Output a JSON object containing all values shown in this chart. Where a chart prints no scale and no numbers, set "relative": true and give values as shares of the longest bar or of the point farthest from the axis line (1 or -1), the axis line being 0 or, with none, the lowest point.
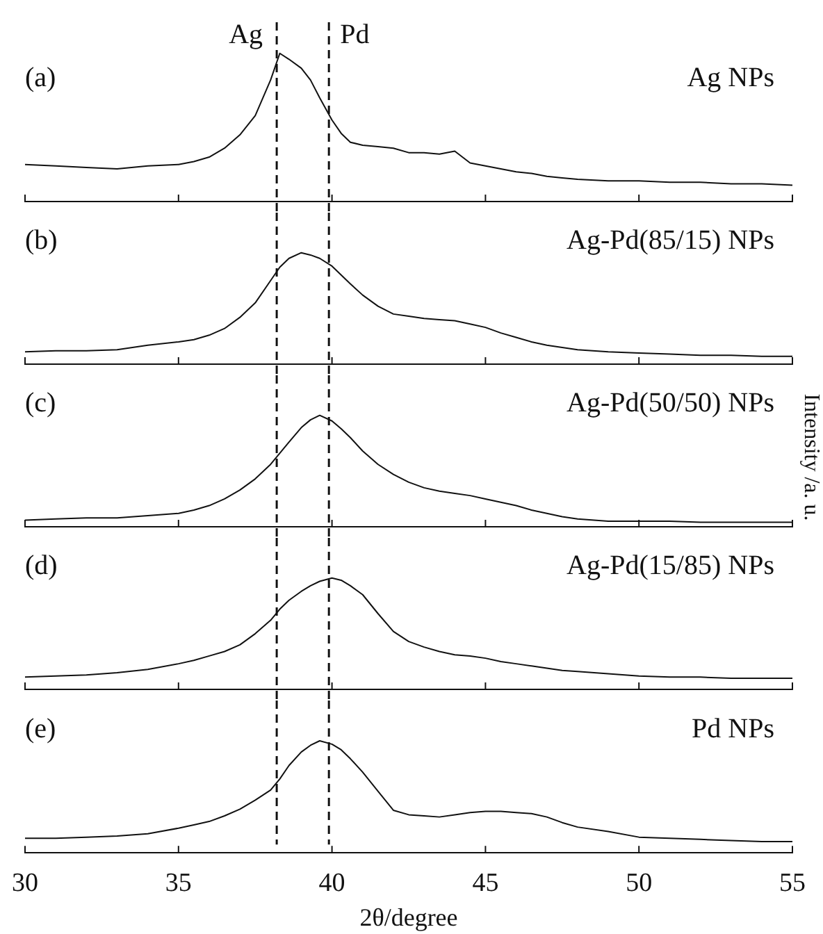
{
  "chart_data": [
    {
      "type": "line",
      "relative": true,
      "tick_labels": false,
      "xlim": [
        30,
        55
      ],
      "xticks": [
        30,
        35,
        40,
        45,
        50,
        55
      ],
      "x": [
        30,
        31,
        32,
        33,
        34,
        35,
        35.5,
        36,
        36.5,
        37,
        37.5,
        38,
        38.3,
        38.6,
        39,
        39.3,
        39.6,
        40,
        40.3,
        40.6,
        41,
        41.5,
        42,
        42.5,
        43,
        43.5,
        44,
        44.5,
        45,
        45.5,
        46,
        46.5,
        47,
        47.5,
        48,
        49,
        50,
        51,
        52,
        53,
        54,
        55
      ],
      "series": [
        {
          "color": "#111111",
          "values": [
            0.25,
            0.24,
            0.23,
            0.22,
            0.24,
            0.25,
            0.27,
            0.3,
            0.36,
            0.45,
            0.58,
            0.82,
            1.0,
            0.96,
            0.9,
            0.82,
            0.7,
            0.55,
            0.46,
            0.4,
            0.38,
            0.37,
            0.36,
            0.33,
            0.33,
            0.32,
            0.34,
            0.26,
            0.24,
            0.22,
            0.2,
            0.19,
            0.17,
            0.16,
            0.15,
            0.14,
            0.14,
            0.13,
            0.13,
            0.12,
            0.12,
            0.11
          ]
        }
      ],
      "annotations": [
        "(a)",
        "Ag NPs"
      ],
      "ref_lines": [
        {
          "axis": "x",
          "value": 38.2,
          "label": "Ag",
          "line_style": "dashed"
        },
        {
          "axis": "x",
          "value": 39.9,
          "label": "Pd",
          "line_style": "dashed"
        }
      ]
    },
    {
      "type": "line",
      "relative": true,
      "tick_labels": false,
      "xlim": [
        30,
        55
      ],
      "xticks": [
        30,
        35,
        40,
        45,
        50,
        55
      ],
      "x": [
        30,
        31,
        32,
        33,
        34,
        35,
        35.5,
        36,
        36.5,
        37,
        37.5,
        38,
        38.3,
        38.6,
        39,
        39.3,
        39.6,
        40,
        40.3,
        40.6,
        41,
        41.5,
        42,
        42.5,
        43,
        43.5,
        44,
        44.5,
        45,
        45.5,
        46,
        46.5,
        47,
        47.5,
        48,
        49,
        50,
        51,
        52,
        53,
        54,
        55
      ],
      "series": [
        {
          "color": "#111111",
          "values": [
            0.11,
            0.12,
            0.12,
            0.13,
            0.17,
            0.2,
            0.22,
            0.26,
            0.32,
            0.42,
            0.55,
            0.75,
            0.87,
            0.95,
            1.0,
            0.98,
            0.95,
            0.88,
            0.8,
            0.72,
            0.62,
            0.52,
            0.45,
            0.43,
            0.41,
            0.4,
            0.39,
            0.36,
            0.33,
            0.28,
            0.24,
            0.2,
            0.17,
            0.15,
            0.13,
            0.11,
            0.1,
            0.09,
            0.08,
            0.08,
            0.07,
            0.07
          ]
        }
      ],
      "annotations": [
        "(b)",
        "Ag-Pd(85/15) NPs"
      ],
      "ref_lines": [
        {
          "axis": "x",
          "value": 38.2,
          "line_style": "dashed"
        },
        {
          "axis": "x",
          "value": 39.9,
          "line_style": "dashed"
        }
      ]
    },
    {
      "type": "line",
      "relative": true,
      "tick_labels": false,
      "xlim": [
        30,
        55
      ],
      "xticks": [
        30,
        35,
        40,
        45,
        50,
        55
      ],
      "ylabel": "Intensity /a. u.",
      "x": [
        30,
        31,
        32,
        33,
        34,
        35,
        35.5,
        36,
        36.5,
        37,
        37.5,
        38,
        38.3,
        38.6,
        39,
        39.3,
        39.6,
        40,
        40.3,
        40.6,
        41,
        41.5,
        42,
        42.5,
        43,
        43.5,
        44,
        44.5,
        45,
        45.5,
        46,
        46.5,
        47,
        47.5,
        48,
        49,
        50,
        51,
        52,
        53,
        54,
        55
      ],
      "series": [
        {
          "color": "#111111",
          "values": [
            0.06,
            0.07,
            0.08,
            0.08,
            0.1,
            0.12,
            0.15,
            0.19,
            0.25,
            0.33,
            0.43,
            0.56,
            0.66,
            0.76,
            0.89,
            0.96,
            1.0,
            0.95,
            0.88,
            0.8,
            0.68,
            0.56,
            0.47,
            0.4,
            0.35,
            0.32,
            0.3,
            0.28,
            0.25,
            0.22,
            0.19,
            0.15,
            0.12,
            0.09,
            0.07,
            0.05,
            0.05,
            0.05,
            0.04,
            0.04,
            0.04,
            0.04
          ]
        }
      ],
      "annotations": [
        "(c)",
        "Ag-Pd(50/50) NPs"
      ],
      "ref_lines": [
        {
          "axis": "x",
          "value": 38.2,
          "line_style": "dashed"
        },
        {
          "axis": "x",
          "value": 39.9,
          "line_style": "dashed"
        }
      ]
    },
    {
      "type": "line",
      "relative": true,
      "tick_labels": false,
      "xlim": [
        30,
        55
      ],
      "xticks": [
        30,
        35,
        40,
        45,
        50,
        55
      ],
      "x": [
        30,
        31,
        32,
        33,
        34,
        35,
        35.5,
        36,
        36.5,
        37,
        37.5,
        38,
        38.3,
        38.6,
        39,
        39.3,
        39.6,
        40,
        40.3,
        40.6,
        41,
        41.5,
        42,
        42.5,
        43,
        43.5,
        44,
        44.5,
        45,
        45.5,
        46,
        46.5,
        47,
        47.5,
        48,
        49,
        50,
        51,
        52,
        53,
        54,
        55
      ],
      "series": [
        {
          "color": "#111111",
          "values": [
            0.11,
            0.12,
            0.13,
            0.15,
            0.18,
            0.23,
            0.26,
            0.3,
            0.34,
            0.4,
            0.5,
            0.62,
            0.72,
            0.8,
            0.88,
            0.93,
            0.97,
            1.0,
            0.98,
            0.93,
            0.85,
            0.68,
            0.52,
            0.43,
            0.38,
            0.34,
            0.31,
            0.3,
            0.28,
            0.25,
            0.23,
            0.21,
            0.19,
            0.17,
            0.16,
            0.14,
            0.12,
            0.11,
            0.11,
            0.1,
            0.1,
            0.1
          ]
        }
      ],
      "annotations": [
        "(d)",
        "Ag-Pd(15/85) NPs"
      ],
      "ref_lines": [
        {
          "axis": "x",
          "value": 38.2,
          "line_style": "dashed"
        },
        {
          "axis": "x",
          "value": 39.9,
          "line_style": "dashed"
        }
      ]
    },
    {
      "type": "line",
      "relative": true,
      "tick_labels": "x",
      "xlim": [
        30,
        55
      ],
      "xticks": [
        30,
        35,
        40,
        45,
        50,
        55
      ],
      "xlabel": "2θ/degree",
      "x": [
        30,
        31,
        32,
        33,
        34,
        35,
        35.5,
        36,
        36.5,
        37,
        37.5,
        38,
        38.3,
        38.6,
        39,
        39.3,
        39.6,
        40,
        40.3,
        40.6,
        41,
        41.5,
        42,
        42.5,
        43,
        43.5,
        44,
        44.5,
        45,
        45.5,
        46,
        46.5,
        47,
        47.5,
        48,
        49,
        50,
        51,
        52,
        53,
        54,
        55
      ],
      "series": [
        {
          "color": "#111111",
          "values": [
            0.13,
            0.13,
            0.14,
            0.15,
            0.17,
            0.22,
            0.25,
            0.28,
            0.33,
            0.39,
            0.47,
            0.56,
            0.66,
            0.78,
            0.9,
            0.96,
            1.0,
            0.97,
            0.92,
            0.84,
            0.72,
            0.55,
            0.38,
            0.34,
            0.33,
            0.32,
            0.34,
            0.36,
            0.37,
            0.37,
            0.36,
            0.35,
            0.32,
            0.27,
            0.23,
            0.19,
            0.14,
            0.13,
            0.12,
            0.11,
            0.1,
            0.1
          ]
        }
      ],
      "annotations": [
        "(e)",
        "Pd NPs"
      ],
      "ref_lines": [
        {
          "axis": "x",
          "value": 38.2,
          "line_style": "dashed"
        },
        {
          "axis": "x",
          "value": 39.9,
          "line_style": "dashed"
        }
      ]
    }
  ]
}
